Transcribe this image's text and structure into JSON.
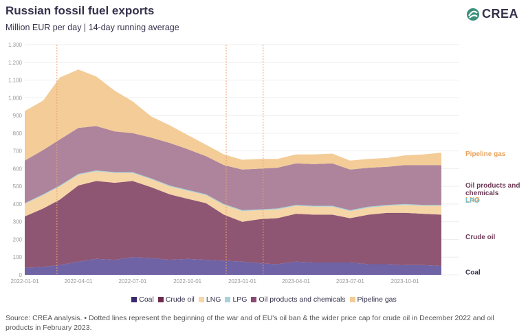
{
  "header": {
    "title": "Russian fossil fuel exports",
    "subtitle": "Million EUR per day | 14-day running average",
    "logo_text": "CREA"
  },
  "footer": {
    "note": "Source: CREA analysis. • Dotted lines represent the beginning of the war and of EU's oil ban & the wider price cap for crude oil in December 2022 and oil products in February 2023."
  },
  "colors": {
    "coal": "#6f63a6",
    "crude_oil": "#8e5673",
    "lng": "#f6d5a6",
    "lpg": "#a9d2d8",
    "oil_products": "#ad849c",
    "pipeline_gas": "#f3cc98",
    "grid": "#eeeeee",
    "event_line": "#f0a170"
  },
  "chart_data": {
    "type": "area",
    "stacked": true,
    "title": "Russian fossil fuel exports",
    "subtitle": "Million EUR per day | 14-day running average",
    "xlabel": "",
    "ylabel": "",
    "ylim": [
      0,
      1300
    ],
    "xlim": [
      "2022-01-01",
      "2023-12-31"
    ],
    "yticks": [
      0,
      100,
      200,
      300,
      400,
      500,
      600,
      700,
      800,
      900,
      1000,
      1100,
      1200,
      1300
    ],
    "ytick_labels": [
      "0",
      "100",
      "200",
      "300",
      "400",
      "500",
      "600",
      "700",
      "800",
      "900",
      "1,000",
      "1,100",
      "1,200",
      "1,300"
    ],
    "xticks": [
      "2022-01-01",
      "2022-04-01",
      "2022-07-01",
      "2022-10-01",
      "2023-01-01",
      "2023-04-01",
      "2023-07-01",
      "2023-10-01"
    ],
    "legend_position": "bottom",
    "event_lines": [
      "2022-02-24",
      "2022-12-05",
      "2023-02-05"
    ],
    "x": [
      "2022-01-01",
      "2022-02-01",
      "2022-03-01",
      "2022-04-01",
      "2022-05-01",
      "2022-06-01",
      "2022-07-01",
      "2022-08-01",
      "2022-09-01",
      "2022-10-01",
      "2022-11-01",
      "2022-12-01",
      "2023-01-01",
      "2023-02-01",
      "2023-03-01",
      "2023-04-01",
      "2023-05-01",
      "2023-06-01",
      "2023-07-01",
      "2023-08-01",
      "2023-09-01",
      "2023-10-01",
      "2023-11-01",
      "2023-12-01"
    ],
    "series": [
      {
        "name": "Coal",
        "key": "coal",
        "values": [
          40,
          45,
          55,
          75,
          90,
          85,
          100,
          95,
          85,
          90,
          85,
          80,
          75,
          65,
          60,
          75,
          70,
          70,
          70,
          60,
          60,
          55,
          55,
          50
        ]
      },
      {
        "name": "Crude oil",
        "key": "crude_oil",
        "values": [
          290,
          330,
          370,
          430,
          440,
          435,
          430,
          400,
          370,
          340,
          320,
          260,
          225,
          250,
          260,
          270,
          270,
          270,
          250,
          280,
          290,
          295,
          290,
          290
        ]
      },
      {
        "name": "LNG",
        "key": "lng",
        "values": [
          70,
          75,
          75,
          60,
          55,
          55,
          45,
          45,
          45,
          45,
          45,
          55,
          60,
          50,
          50,
          45,
          45,
          45,
          40,
          40,
          40,
          45,
          45,
          50
        ]
      },
      {
        "name": "LPG",
        "key": "lpg",
        "values": [
          5,
          5,
          5,
          5,
          5,
          5,
          5,
          5,
          5,
          5,
          5,
          5,
          5,
          5,
          5,
          5,
          5,
          5,
          5,
          5,
          5,
          5,
          5,
          5
        ]
      },
      {
        "name": "Oil products and chemicals",
        "key": "oil_products",
        "values": [
          240,
          250,
          260,
          260,
          250,
          230,
          220,
          230,
          240,
          230,
          215,
          220,
          230,
          230,
          230,
          235,
          235,
          240,
          230,
          220,
          215,
          220,
          225,
          225
        ]
      },
      {
        "name": "Pipeline gas",
        "key": "pipeline_gas",
        "values": [
          280,
          280,
          350,
          330,
          280,
          230,
          180,
          120,
          100,
          80,
          65,
          60,
          55,
          55,
          50,
          50,
          55,
          55,
          50,
          50,
          50,
          55,
          60,
          70
        ]
      }
    ]
  }
}
